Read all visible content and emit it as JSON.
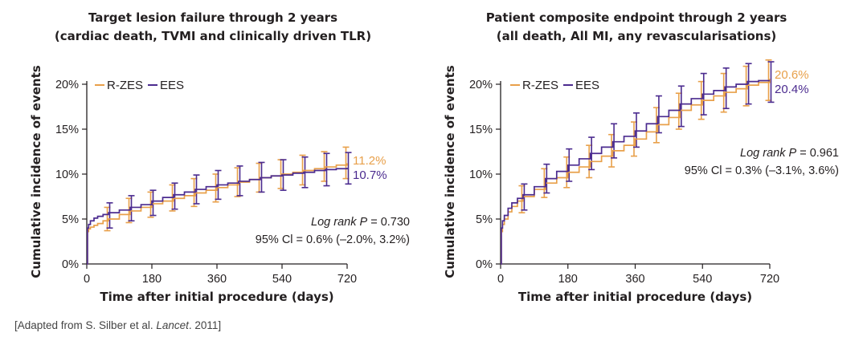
{
  "colors": {
    "rzes": "#e8a04a",
    "ees": "#4b2b8f",
    "axis": "#231f20"
  },
  "source_text": "[Adapted from S. Silber et al. ",
  "source_journal": "Lancet",
  "source_year": ". 2011]",
  "chart_data": [
    {
      "type": "line",
      "title": [
        "Target lesion failure through 2 years",
        "(cardiac death, TVMI and clinically driven TLR)"
      ],
      "xlabel": "Time after initial procedure (days)",
      "ylabel": "Cumulative incidence of events",
      "xlim": [
        0,
        720
      ],
      "ylim": [
        0,
        20
      ],
      "xticks": [
        0,
        180,
        360,
        540,
        720
      ],
      "xtick_labels": [
        "0",
        "180",
        "360",
        "540",
        "720"
      ],
      "yticks": [
        0,
        5,
        10,
        15,
        20
      ],
      "ytick_labels": [
        "0%",
        "5%",
        "10%",
        "15%",
        "20%"
      ],
      "legend": {
        "position": "top-left",
        "entries": [
          "R-ZES",
          "EES"
        ]
      },
      "annotation": {
        "line1_prefix": "Log rank ",
        "line1_p": "P",
        "line1_suffix": " = 0.730",
        "line2": "95% Cl = 0.6% (–2.0%, 3.2%)"
      },
      "end_labels": {
        "rzes": "11.2%",
        "ees": "10.7%"
      },
      "series": [
        {
          "name": "R-ZES",
          "color_key": "rzes",
          "x": [
            0,
            2,
            5,
            10,
            20,
            30,
            45,
            60,
            90,
            120,
            150,
            180,
            210,
            240,
            270,
            300,
            330,
            360,
            390,
            420,
            450,
            480,
            510,
            540,
            570,
            600,
            630,
            660,
            690,
            720
          ],
          "y": [
            0,
            3.6,
            3.9,
            4.1,
            4.3,
            4.5,
            4.8,
            5.0,
            5.5,
            5.9,
            6.3,
            6.7,
            7.0,
            7.3,
            7.6,
            7.9,
            8.2,
            8.5,
            8.8,
            9.1,
            9.4,
            9.6,
            9.8,
            10.0,
            10.2,
            10.4,
            10.6,
            10.8,
            11.0,
            11.2
          ],
          "ci": [
            {
              "x": 60,
              "lo": 3.7,
              "hi": 6.3
            },
            {
              "x": 120,
              "lo": 4.6,
              "hi": 7.3
            },
            {
              "x": 180,
              "lo": 5.2,
              "hi": 8.0
            },
            {
              "x": 240,
              "lo": 5.9,
              "hi": 8.8
            },
            {
              "x": 300,
              "lo": 6.4,
              "hi": 9.5
            },
            {
              "x": 360,
              "lo": 6.9,
              "hi": 10.0
            },
            {
              "x": 420,
              "lo": 7.5,
              "hi": 10.7
            },
            {
              "x": 480,
              "lo": 8.0,
              "hi": 11.2
            },
            {
              "x": 540,
              "lo": 8.4,
              "hi": 11.6
            },
            {
              "x": 600,
              "lo": 8.8,
              "hi": 12.1
            },
            {
              "x": 660,
              "lo": 9.2,
              "hi": 12.5
            },
            {
              "x": 720,
              "lo": 9.5,
              "hi": 13.0
            }
          ]
        },
        {
          "name": "EES",
          "color_key": "ees",
          "x": [
            0,
            2,
            5,
            10,
            20,
            30,
            45,
            60,
            90,
            120,
            150,
            180,
            210,
            240,
            270,
            300,
            330,
            360,
            390,
            420,
            450,
            480,
            510,
            540,
            570,
            600,
            630,
            660,
            690,
            720
          ],
          "y": [
            0,
            4.0,
            4.4,
            4.8,
            5.1,
            5.3,
            5.5,
            5.7,
            6.0,
            6.3,
            6.6,
            7.0,
            7.4,
            7.7,
            8.0,
            8.3,
            8.6,
            8.8,
            9.0,
            9.2,
            9.4,
            9.6,
            9.8,
            9.9,
            10.1,
            10.2,
            10.4,
            10.5,
            10.6,
            10.7
          ],
          "ci": [
            {
              "x": 60,
              "lo": 4.0,
              "hi": 6.8
            },
            {
              "x": 120,
              "lo": 4.8,
              "hi": 7.6
            },
            {
              "x": 180,
              "lo": 5.4,
              "hi": 8.2
            },
            {
              "x": 240,
              "lo": 6.1,
              "hi": 9.0
            },
            {
              "x": 300,
              "lo": 6.7,
              "hi": 9.9
            },
            {
              "x": 360,
              "lo": 7.2,
              "hi": 10.4
            },
            {
              "x": 420,
              "lo": 7.6,
              "hi": 10.9
            },
            {
              "x": 480,
              "lo": 8.0,
              "hi": 11.3
            },
            {
              "x": 540,
              "lo": 8.2,
              "hi": 11.6
            },
            {
              "x": 600,
              "lo": 8.5,
              "hi": 11.9
            },
            {
              "x": 660,
              "lo": 8.7,
              "hi": 12.3
            },
            {
              "x": 720,
              "lo": 8.9,
              "hi": 12.4
            }
          ]
        }
      ]
    },
    {
      "type": "line",
      "title": [
        "Patient composite endpoint through 2 years",
        "(all death, All MI, any revascularisations)"
      ],
      "xlabel": "Time after initial procedure (days)",
      "ylabel": "Cumulative incidence of events",
      "xlim": [
        0,
        720
      ],
      "ylim": [
        0,
        20
      ],
      "xticks": [
        0,
        180,
        360,
        540,
        720
      ],
      "xtick_labels": [
        "0",
        "180",
        "360",
        "540",
        "720"
      ],
      "yticks": [
        0,
        5,
        10,
        15,
        20
      ],
      "ytick_labels": [
        "0%",
        "5%",
        "10%",
        "15%",
        "20%"
      ],
      "legend": {
        "position": "top-left",
        "entries": [
          "R-ZES",
          "EES"
        ]
      },
      "annotation": {
        "line1_prefix": "Log rank ",
        "line1_p": "P",
        "line1_suffix": " = 0.961",
        "line2": "95% Cl = 0.3% (–3.1%, 3.6%)"
      },
      "end_labels": {
        "rzes": "20.6%",
        "ees": "20.4%"
      },
      "series": [
        {
          "name": "R-ZES",
          "color_key": "rzes",
          "x": [
            0,
            2,
            5,
            10,
            20,
            30,
            45,
            60,
            90,
            120,
            150,
            180,
            210,
            240,
            270,
            300,
            330,
            360,
            390,
            420,
            450,
            480,
            510,
            540,
            570,
            600,
            630,
            660,
            690,
            720
          ],
          "y": [
            0,
            3.6,
            4.4,
            5.0,
            5.8,
            6.4,
            7.0,
            7.5,
            8.3,
            9.0,
            9.6,
            10.2,
            10.8,
            11.4,
            12.0,
            12.6,
            13.2,
            13.9,
            14.7,
            15.5,
            16.3,
            17.1,
            17.7,
            18.2,
            18.7,
            19.1,
            19.5,
            19.9,
            20.2,
            20.6
          ],
          "ci": [
            {
              "x": 60,
              "lo": 5.7,
              "hi": 8.7
            },
            {
              "x": 120,
              "lo": 7.4,
              "hi": 10.6
            },
            {
              "x": 180,
              "lo": 8.5,
              "hi": 11.9
            },
            {
              "x": 240,
              "lo": 9.6,
              "hi": 13.2
            },
            {
              "x": 300,
              "lo": 10.8,
              "hi": 14.4
            },
            {
              "x": 360,
              "lo": 12.0,
              "hi": 15.8
            },
            {
              "x": 420,
              "lo": 13.5,
              "hi": 17.4
            },
            {
              "x": 480,
              "lo": 15.0,
              "hi": 19.0
            },
            {
              "x": 540,
              "lo": 16.1,
              "hi": 20.3
            },
            {
              "x": 600,
              "lo": 16.9,
              "hi": 21.2
            },
            {
              "x": 660,
              "lo": 17.6,
              "hi": 22.0
            },
            {
              "x": 720,
              "lo": 18.2,
              "hi": 22.7
            }
          ]
        },
        {
          "name": "EES",
          "color_key": "ees",
          "x": [
            0,
            2,
            5,
            10,
            20,
            30,
            45,
            60,
            90,
            120,
            150,
            180,
            210,
            240,
            270,
            300,
            330,
            360,
            390,
            420,
            450,
            480,
            510,
            540,
            570,
            600,
            630,
            660,
            690,
            720
          ],
          "y": [
            0,
            4.0,
            4.8,
            5.4,
            6.2,
            6.8,
            7.3,
            7.7,
            8.6,
            9.5,
            10.3,
            11.0,
            11.7,
            12.3,
            13.0,
            13.6,
            14.2,
            14.8,
            15.6,
            16.4,
            17.1,
            17.8,
            18.4,
            18.9,
            19.3,
            19.7,
            20.0,
            20.3,
            20.4,
            20.4
          ],
          "ci": [
            {
              "x": 60,
              "lo": 6.0,
              "hi": 8.9
            },
            {
              "x": 120,
              "lo": 7.9,
              "hi": 11.1
            },
            {
              "x": 180,
              "lo": 9.2,
              "hi": 12.8
            },
            {
              "x": 240,
              "lo": 10.5,
              "hi": 14.1
            },
            {
              "x": 300,
              "lo": 11.8,
              "hi": 15.6
            },
            {
              "x": 360,
              "lo": 13.0,
              "hi": 16.8
            },
            {
              "x": 420,
              "lo": 14.6,
              "hi": 18.7
            },
            {
              "x": 480,
              "lo": 15.3,
              "hi": 19.8
            },
            {
              "x": 540,
              "lo": 16.6,
              "hi": 21.2
            },
            {
              "x": 600,
              "lo": 17.3,
              "hi": 21.8
            },
            {
              "x": 660,
              "lo": 17.8,
              "hi": 22.3
            },
            {
              "x": 720,
              "lo": 18.0,
              "hi": 22.5
            }
          ]
        }
      ]
    }
  ]
}
